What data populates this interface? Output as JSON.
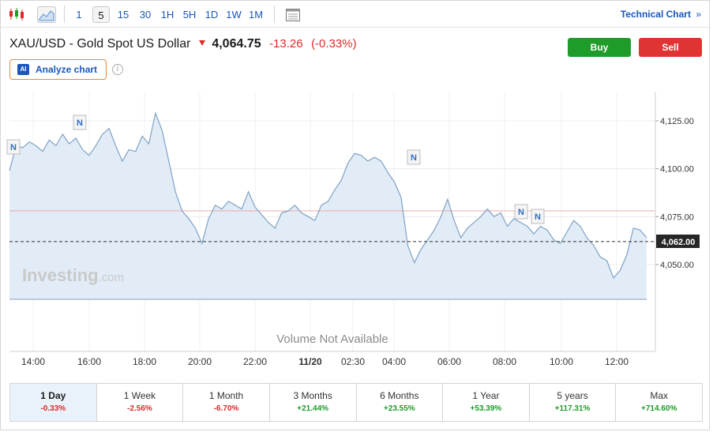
{
  "toolbar": {
    "timeframes": [
      "1",
      "5",
      "15",
      "30",
      "1H",
      "5H",
      "1D",
      "1W",
      "1M"
    ],
    "active_timeframe": "5",
    "technical_chart_label": "Technical Chart"
  },
  "instrument": {
    "symbol": "XAU/USD",
    "separator": "-",
    "name": "Gold Spot US Dollar",
    "price": "4,064.75",
    "change": "-13.26",
    "change_pct": "(-0.33%)",
    "direction": "down"
  },
  "actions": {
    "buy": "Buy",
    "sell": "Sell"
  },
  "analyze": {
    "badge": "AI",
    "label": "Analyze chart"
  },
  "chart": {
    "watermark_brand": "Investing",
    "watermark_suffix": ".com",
    "volume_text": "Volume Not Available",
    "current_price_label": "4,062.00",
    "news_marker": "N"
  },
  "chart_data": {
    "type": "area",
    "y_ticks": [
      "4,125.00",
      "4,100.00",
      "4,075.00",
      "4,050.00"
    ],
    "x_ticks": [
      "14:00",
      "16:00",
      "18:00",
      "20:00",
      "22:00",
      "11/20",
      "02:30",
      "04:00",
      "06:00",
      "08:00",
      "10:00",
      "12:00"
    ],
    "ylim": [
      4033,
      4131
    ],
    "current_price": 4062.0,
    "prev_close": 4078.0,
    "series": [
      {
        "values": [
          4099,
          4112,
          4111,
          4114,
          4112,
          4109,
          4115,
          4112,
          4118,
          4113,
          4116,
          4110,
          4107,
          4112,
          4118,
          4121,
          4112,
          4104,
          4110,
          4109,
          4117,
          4113,
          4129,
          4120,
          4104,
          4088,
          4078,
          4074,
          4069,
          4061,
          4074,
          4081,
          4079,
          4083,
          4081,
          4079,
          4088,
          4080,
          4076,
          4072,
          4069,
          4077,
          4078,
          4081,
          4077,
          4075,
          4073,
          4081,
          4083,
          4089,
          4094,
          4103,
          4108,
          4107,
          4104,
          4106,
          4104,
          4098,
          4093,
          4085,
          4060,
          4051,
          4058,
          4063,
          4068,
          4075,
          4084,
          4073,
          4064,
          4069,
          4072,
          4075,
          4079,
          4075,
          4077,
          4070,
          4074,
          4072,
          4070,
          4066,
          4070,
          4068,
          4063,
          4061,
          4067,
          4073,
          4070,
          4064,
          4060,
          4054,
          4052,
          4043,
          4047,
          4055,
          4069,
          4068,
          4064
        ]
      }
    ]
  },
  "periods": [
    {
      "label": "1 Day",
      "value": "-0.33%",
      "dir": "neg"
    },
    {
      "label": "1 Week",
      "value": "-2.56%",
      "dir": "neg"
    },
    {
      "label": "1 Month",
      "value": "-6.70%",
      "dir": "neg"
    },
    {
      "label": "3 Months",
      "value": "+21.44%",
      "dir": "pos"
    },
    {
      "label": "6 Months",
      "value": "+23.55%",
      "dir": "pos"
    },
    {
      "label": "1 Year",
      "value": "+53.39%",
      "dir": "pos"
    },
    {
      "label": "5 years",
      "value": "+117.31%",
      "dir": "pos"
    },
    {
      "label": "Max",
      "value": "+714.60%",
      "dir": "pos"
    }
  ]
}
